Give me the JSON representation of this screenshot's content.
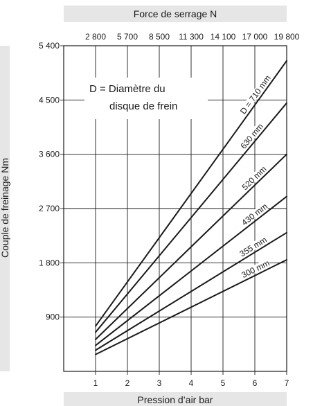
{
  "chart_data": {
    "type": "line",
    "title": "",
    "top_axis": {
      "label": "Force de serrage N",
      "ticks": [
        "2 800",
        "5 700",
        "8 500",
        "11 300",
        "14 100",
        "17 000",
        "19 800"
      ]
    },
    "xlabel": "Pression d’air bar",
    "ylabel": "Couple de freinage Nm",
    "x_ticks": [
      "1",
      "2",
      "3",
      "4",
      "5",
      "6",
      "7"
    ],
    "y_ticks": [
      "900",
      "1 800",
      "2 700",
      "3 600",
      "4 500",
      "5 400"
    ],
    "y_tick_values": [
      900,
      1800,
      2700,
      3600,
      4500,
      5400
    ],
    "xlim": [
      0,
      7
    ],
    "ylim": [
      0,
      5400
    ],
    "grid": true,
    "legend_note": [
      "D = Diamètre du",
      "disque de frein"
    ],
    "series": [
      {
        "name": "D = 710 mm",
        "x": [
          1,
          7
        ],
        "y": [
          750,
          5150
        ]
      },
      {
        "name": "630 mm",
        "x": [
          1,
          7
        ],
        "y": [
          650,
          4450
        ]
      },
      {
        "name": "520 mm",
        "x": [
          1,
          7
        ],
        "y": [
          530,
          3600
        ]
      },
      {
        "name": "430 mm",
        "x": [
          1,
          7
        ],
        "y": [
          430,
          2900
        ]
      },
      {
        "name": "355 mm",
        "x": [
          1,
          7
        ],
        "y": [
          350,
          2300
        ]
      },
      {
        "name": "300 mm",
        "x": [
          1,
          7
        ],
        "y": [
          280,
          1850
        ]
      }
    ]
  }
}
